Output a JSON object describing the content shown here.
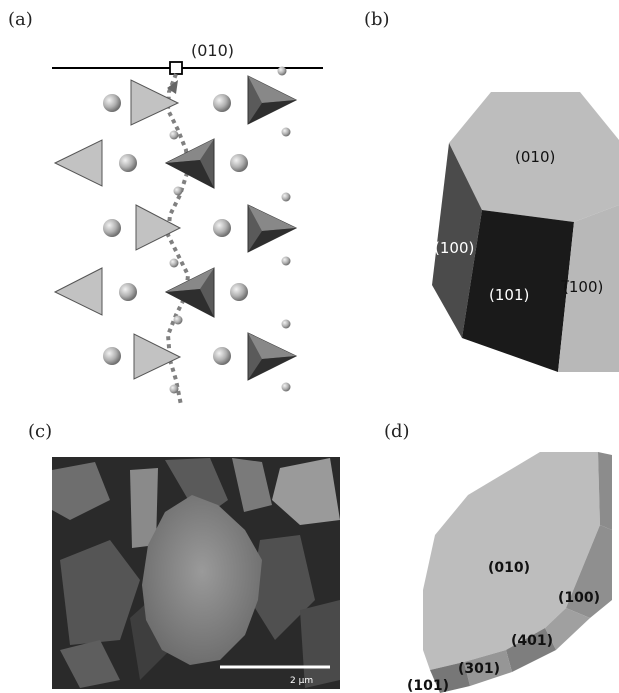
{
  "panels": {
    "a": {
      "letter": "(a)",
      "plane_label": "(010)"
    },
    "b": {
      "letter": "(b)",
      "faces": {
        "top": "(010)",
        "left": "(100)",
        "front": "(101)",
        "right": "(̅100)"
      }
    },
    "c": {
      "letter": "(c)",
      "scale_bar": "2 μm"
    },
    "d": {
      "letter": "(d)",
      "faces": {
        "top": "(010)",
        "f100": "(100)",
        "f401": "(401)",
        "f301": "(301)",
        "f101": "(101)"
      }
    }
  }
}
